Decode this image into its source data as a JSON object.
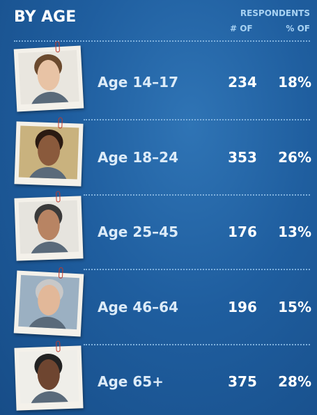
{
  "header": {
    "title": "BY AGE",
    "group_label": "RESPONDENTS",
    "columns": [
      "# OF",
      "% OF"
    ]
  },
  "table": {
    "rows": [
      [
        "Age 14–17",
        "234",
        "18%"
      ],
      [
        "Age 18–24",
        "353",
        "26%"
      ],
      [
        "Age 25–45",
        "176",
        "13%"
      ],
      [
        "Age 46–64",
        "196",
        "15%"
      ],
      [
        "Age 65+",
        "375",
        "28%"
      ]
    ]
  }
}
